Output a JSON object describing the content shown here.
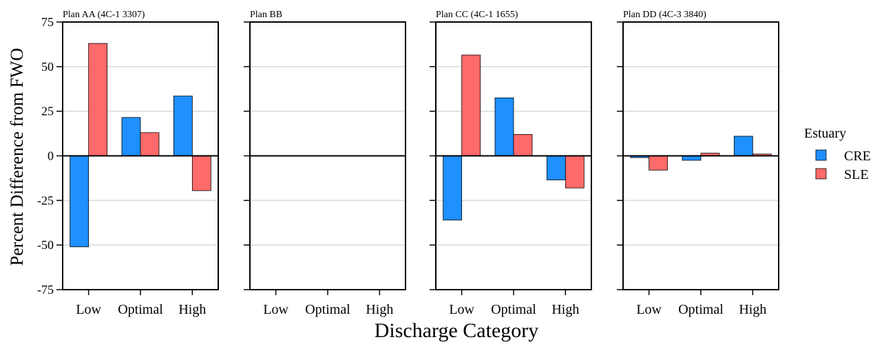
{
  "chart_data": {
    "type": "bar",
    "ylabel": "Percent Difference from FWO",
    "xlabel": "Discharge Category",
    "ylim": [
      -75,
      75
    ],
    "yticks": [
      -75,
      -50,
      -25,
      0,
      25,
      50,
      75
    ],
    "categories": [
      "Low",
      "Optimal",
      "High"
    ],
    "grid": "horizontal",
    "legend": {
      "title": "Estuary",
      "position": "right",
      "entries": [
        {
          "name": "CRE",
          "color": "#1E90FF"
        },
        {
          "name": "SLE",
          "color": "#FF6A6A"
        }
      ]
    },
    "panels": [
      {
        "title": "Plan AA (4C-1  3307)",
        "series": [
          {
            "name": "CRE",
            "values": [
              -51,
              21.5,
              33.5
            ]
          },
          {
            "name": "SLE",
            "values": [
              63,
              13,
              -19.5
            ]
          }
        ]
      },
      {
        "title": "Plan BB",
        "series": [
          {
            "name": "CRE",
            "values": [
              null,
              null,
              null
            ]
          },
          {
            "name": "SLE",
            "values": [
              null,
              null,
              null
            ]
          }
        ]
      },
      {
        "title": "Plan CC (4C-1  1655)",
        "series": [
          {
            "name": "CRE",
            "values": [
              -36,
              32.5,
              -13.5
            ]
          },
          {
            "name": "SLE",
            "values": [
              56.5,
              12,
              -18
            ]
          }
        ]
      },
      {
        "title": "Plan DD (4C-3  3840)",
        "series": [
          {
            "name": "CRE",
            "values": [
              -1,
              -2.5,
              11
            ]
          },
          {
            "name": "SLE",
            "values": [
              -8,
              1.5,
              1
            ]
          }
        ]
      }
    ]
  }
}
